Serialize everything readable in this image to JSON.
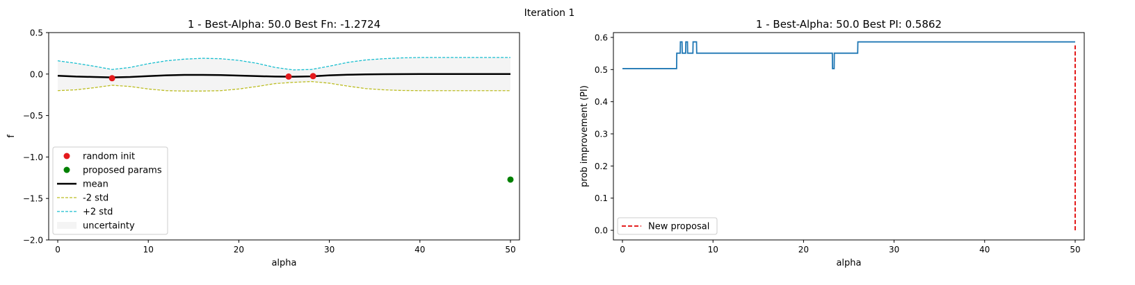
{
  "figure": {
    "suptitle": "Iteration 1"
  },
  "chart_data": [
    {
      "type": "line",
      "title": "1 - Best-Alpha: 50.0 Best Fn: -1.2724",
      "xlabel": "alpha",
      "ylabel": "f",
      "xlim": [
        -1,
        51
      ],
      "ylim": [
        -2.0,
        0.5
      ],
      "xticks": [
        "0",
        "10",
        "20",
        "30",
        "40",
        "50"
      ],
      "yticks": [
        "0.5",
        "0.0",
        "−0.5",
        "−1.0",
        "−1.5",
        "−2.0"
      ],
      "grid": false,
      "legend_placement": "lower-left",
      "x": [
        0,
        2,
        4,
        6,
        8,
        10,
        12,
        14,
        16,
        18,
        20,
        22,
        24,
        26,
        28,
        30,
        32,
        34,
        36,
        38,
        40,
        42,
        44,
        46,
        48,
        50
      ],
      "series": [
        {
          "name": "mean",
          "style": "solid",
          "color": "#000000",
          "values": [
            -0.02,
            -0.03,
            -0.035,
            -0.04,
            -0.035,
            -0.025,
            -0.015,
            -0.01,
            -0.01,
            -0.012,
            -0.018,
            -0.025,
            -0.03,
            -0.032,
            -0.028,
            -0.015,
            -0.008,
            -0.004,
            -0.002,
            -0.001,
            0.0,
            0.0,
            0.0,
            0.0,
            0.0,
            0.0
          ]
        },
        {
          "name": "-2 std",
          "style": "dashed",
          "color": "#bcbd22",
          "values": [
            -0.2,
            -0.19,
            -0.165,
            -0.135,
            -0.15,
            -0.18,
            -0.2,
            -0.205,
            -0.205,
            -0.2,
            -0.18,
            -0.15,
            -0.115,
            -0.1,
            -0.09,
            -0.11,
            -0.145,
            -0.175,
            -0.19,
            -0.198,
            -0.2,
            -0.2,
            -0.2,
            -0.2,
            -0.2,
            -0.2
          ]
        },
        {
          "name": "+2 std",
          "style": "dashed",
          "color": "#17becf",
          "values": [
            0.16,
            0.13,
            0.095,
            0.055,
            0.08,
            0.125,
            0.16,
            0.18,
            0.19,
            0.185,
            0.165,
            0.13,
            0.08,
            0.05,
            0.055,
            0.095,
            0.14,
            0.17,
            0.185,
            0.195,
            0.2,
            0.2,
            0.2,
            0.2,
            0.2,
            0.2
          ]
        }
      ],
      "band": {
        "name": "uncertainty",
        "color": "#f4f4f4"
      },
      "scatter": [
        {
          "name": "random init",
          "color": "#e41a1c",
          "points": [
            {
              "x": 6.0,
              "y": -0.05
            },
            {
              "x": 25.5,
              "y": -0.03
            },
            {
              "x": 28.2,
              "y": -0.025
            }
          ]
        },
        {
          "name": "proposed params",
          "color": "#008000",
          "points": [
            {
              "x": 50.0,
              "y": -1.2724
            }
          ]
        }
      ],
      "legend": [
        "random init",
        "proposed params",
        "mean",
        "-2 std",
        "+2 std",
        "uncertainty"
      ]
    },
    {
      "type": "line",
      "title": "1 - Best-Alpha: 50.0 Best PI: 0.5862",
      "xlabel": "alpha",
      "ylabel": "prob improvement (PI)",
      "xlim": [
        -1,
        51
      ],
      "ylim": [
        -0.03,
        0.615
      ],
      "xticks": [
        "0",
        "10",
        "20",
        "30",
        "40",
        "50"
      ],
      "yticks": [
        "0.0",
        "0.1",
        "0.2",
        "0.3",
        "0.4",
        "0.5",
        "0.6"
      ],
      "grid": false,
      "legend_placement": "lower-left",
      "series": [
        {
          "name": "PI",
          "color": "#1f77b4",
          "style": "solid",
          "x": [
            0,
            5.98,
            6.0,
            6.38,
            6.4,
            6.58,
            6.6,
            6.98,
            7.0,
            7.18,
            7.2,
            7.78,
            7.8,
            8.18,
            8.2,
            23.18,
            23.2,
            23.38,
            23.4,
            25.98,
            26.0,
            50.0
          ],
          "y": [
            0.503,
            0.503,
            0.551,
            0.551,
            0.586,
            0.586,
            0.551,
            0.551,
            0.586,
            0.586,
            0.551,
            0.551,
            0.586,
            0.586,
            0.551,
            0.551,
            0.503,
            0.503,
            0.551,
            0.551,
            0.586,
            0.586
          ]
        }
      ],
      "vline": {
        "name": "New proposal",
        "x": 50.0,
        "y": [
          0.0,
          0.575
        ],
        "color": "#e00000",
        "style": "dashed"
      },
      "legend": [
        "New proposal"
      ]
    }
  ]
}
